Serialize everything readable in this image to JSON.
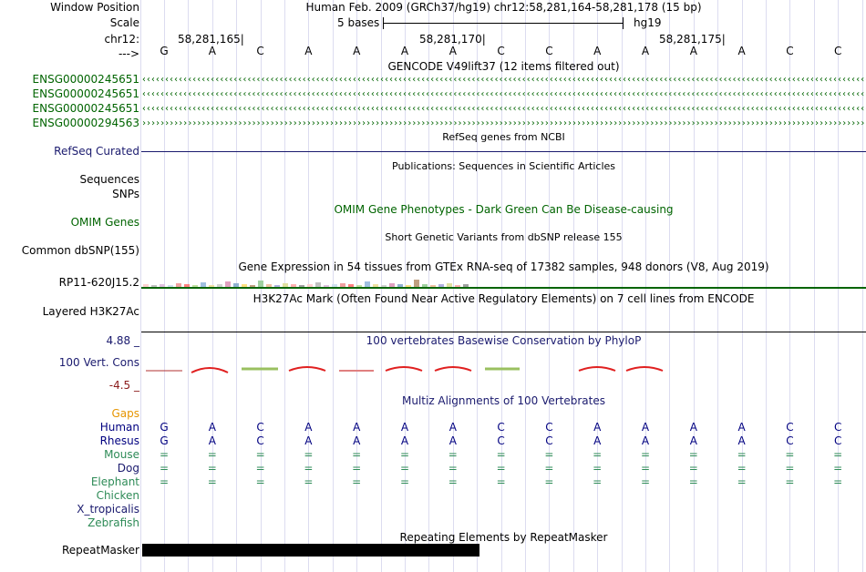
{
  "colors": {
    "gencode": "#006400",
    "refseq": "#1a1a6e",
    "omim": "#006400",
    "human": "#000080",
    "mouse": "#2e8b57",
    "gaps": "#e69500",
    "cons": "#e02020",
    "grid": "#dcdcf0",
    "gtex_line": "#006400",
    "rmsk": "#000000"
  },
  "labels": {
    "window_position": "Window Position",
    "scale": "Scale",
    "chr": "chr12:",
    "arrow": "--->",
    "gene1": "ENSG00000245651",
    "gene2": "ENSG00000245651",
    "gene3": "ENSG00000245651",
    "gene4": "ENSG00000294563",
    "refseq": "RefSeq Curated",
    "sequences": "Sequences",
    "snps": "SNPs",
    "omim": "OMIM Genes",
    "dbsnp": "Common dbSNP(155)",
    "gtex": "RP11-620J15.2",
    "h3k27ac": "Layered H3K27Ac",
    "cons_max": "4.88 _",
    "cons_label": "100 Vert. Cons",
    "cons_min": "-4.5 _",
    "gaps": "Gaps",
    "human": "Human",
    "rhesus": "Rhesus",
    "mouse": "Mouse",
    "dog": "Dog",
    "elephant": "Elephant",
    "chicken": "Chicken",
    "xtrop": "X_tropicalis",
    "zebrafish": "Zebrafish",
    "repeatmasker": "RepeatMasker"
  },
  "header": {
    "position_text": "Human Feb. 2009 (GRCh37/hg19)   chr12:58,281,164-58,281,178 (15 bp)",
    "scale_text": "5 bases",
    "assembly": "hg19",
    "coords": [
      "58,281,165",
      "58,281,170",
      "58,281,175"
    ]
  },
  "bases": [
    "G",
    "A",
    "C",
    "A",
    "A",
    "A",
    "A",
    "C",
    "C",
    "A",
    "A",
    "A",
    "A",
    "C",
    "C"
  ],
  "tracks": {
    "gencode_title": "GENCODE V49lift37 (12 items filtered out)",
    "refseq_title": "RefSeq genes from NCBI",
    "pubs_title": "Publications: Sequences in Scientific Articles",
    "omim_title": "OMIM Gene Phenotypes - Dark Green Can Be Disease-causing",
    "dbsnp_title": "Short Genetic Variants from dbSNP release 155",
    "gtex_title": "Gene Expression in 54 tissues from GTEx RNA-seq of 17382 samples, 948 donors (V8, Aug 2019)",
    "h3k27ac_title": "H3K27Ac Mark (Often Found Near Active Regulatory Elements) on 7 cell lines from ENCODE",
    "cons_title": "100 vertebrates Basewise Conservation by PhyloP",
    "multiz_title": "Multiz Alignments of 100 Vertebrates",
    "rmsk_title": "Repeating Elements by RepeatMasker"
  },
  "alignment": {
    "human": [
      "G",
      "A",
      "C",
      "A",
      "A",
      "A",
      "A",
      "C",
      "C",
      "A",
      "A",
      "A",
      "A",
      "C",
      "C"
    ],
    "rhesus": [
      "G",
      "A",
      "C",
      "A",
      "A",
      "A",
      "A",
      "C",
      "C",
      "A",
      "A",
      "A",
      "A",
      "C",
      "C"
    ],
    "mouse": [
      "=",
      "=",
      "=",
      "=",
      "=",
      "=",
      "=",
      "=",
      "=",
      "=",
      "=",
      "=",
      "=",
      "=",
      "="
    ],
    "dog": [
      "=",
      "=",
      "=",
      "=",
      "=",
      "=",
      "=",
      "=",
      "=",
      "=",
      "=",
      "=",
      "=",
      "=",
      "="
    ],
    "elephant": [
      "=",
      "=",
      "=",
      "=",
      "=",
      "=",
      "=",
      "=",
      "=",
      "=",
      "=",
      "=",
      "=",
      "=",
      "="
    ]
  },
  "gene_arrows": {
    "reverse": "‹",
    "forward": "›"
  }
}
